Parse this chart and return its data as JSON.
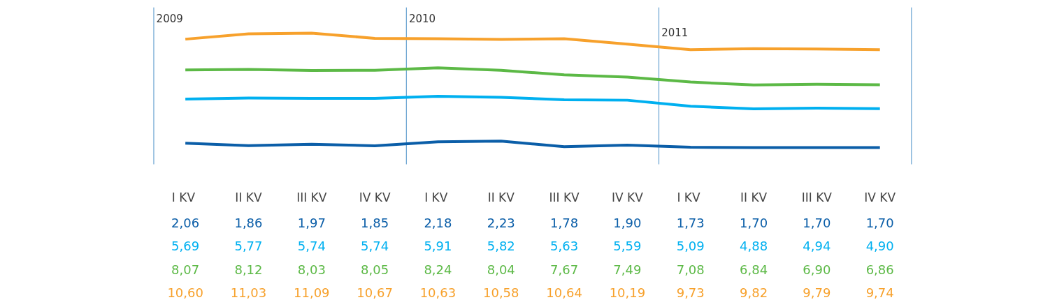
{
  "chart_data": {
    "type": "line",
    "categories": [
      "I  KV",
      "II KV",
      "III KV",
      "IV KV",
      "I  KV",
      "II KV",
      "III KV",
      "IV KV",
      "I  KV",
      "II KV",
      "III KV",
      "IV KV"
    ],
    "series": [
      {
        "color": "#0b5ea8",
        "values": [
          2.06,
          1.86,
          1.97,
          1.85,
          2.18,
          2.23,
          1.78,
          1.9,
          1.73,
          1.7,
          1.7,
          1.7
        ],
        "value_labels": [
          "2,06",
          "1,86",
          "1,97",
          "1,85",
          "2,18",
          "2,23",
          "1,78",
          "1,90",
          "1,73",
          "1,70",
          "1,70",
          "1,70"
        ]
      },
      {
        "color": "#00b0f0",
        "values": [
          5.69,
          5.77,
          5.74,
          5.74,
          5.91,
          5.82,
          5.63,
          5.59,
          5.09,
          4.88,
          4.94,
          4.9
        ],
        "value_labels": [
          "5,69",
          "5,77",
          "5,74",
          "5,74",
          "5,91",
          "5,82",
          "5,63",
          "5,59",
          "5,09",
          "4,88",
          "4,94",
          "4,90"
        ]
      },
      {
        "color": "#5cb946",
        "values": [
          8.07,
          8.12,
          8.03,
          8.05,
          8.24,
          8.04,
          7.67,
          7.49,
          7.08,
          6.84,
          6.9,
          6.86
        ],
        "value_labels": [
          "8,07",
          "8,12",
          "8,03",
          "8,05",
          "8,24",
          "8,04",
          "7,67",
          "7,49",
          "7,08",
          "6,84",
          "6,90",
          "6,86"
        ]
      },
      {
        "color": "#f7a12c",
        "values": [
          10.6,
          11.03,
          11.09,
          10.67,
          10.63,
          10.58,
          10.64,
          10.19,
          9.73,
          9.82,
          9.79,
          9.74
        ],
        "value_labels": [
          "10,60",
          "11,03",
          "11,09",
          "10,67",
          "10,63",
          "10,58",
          "10,64",
          "10,19",
          "9,73",
          "9,82",
          "9,79",
          "9,74"
        ]
      }
    ],
    "grid": false,
    "marker": "none",
    "line_style": "solid",
    "annotations": [
      "2009",
      "2010",
      "2011"
    ]
  }
}
